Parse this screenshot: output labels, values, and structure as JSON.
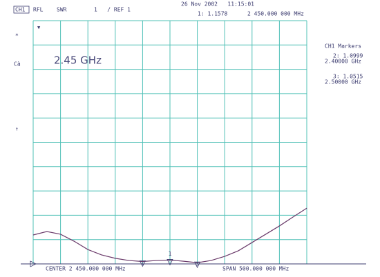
{
  "chart_data": {
    "type": "line",
    "header": {
      "channel": "CH1",
      "format": "RFL",
      "measurement": "SWR",
      "scale": "1   / REF 1",
      "timestamp": "26 Nov 2002   11:15:01",
      "active_marker": "1: 1.1578",
      "active_marker_freq": "2 450.000 000 MHz"
    },
    "annotation": "2.45 GHz",
    "center": "CENTER 2 450.000 000 MHz",
    "span": "SPAN 500.000 000 MHz",
    "side_labels": [
      "*",
      "Cà",
      "↑"
    ],
    "marker_panel": {
      "title": "CH1 Markers",
      "entries": [
        {
          "value": "2: 1.0999",
          "freq": "2.40000 GHz"
        },
        {
          "value": "3: 1.0515",
          "freq": "2.50000 GHz"
        }
      ]
    },
    "x": [
      2200,
      2225,
      2250,
      2275,
      2300,
      2325,
      2350,
      2375,
      2400,
      2425,
      2450,
      2475,
      2500,
      2525,
      2550,
      2575,
      2600,
      2625,
      2650,
      2675,
      2700
    ],
    "values": [
      2.19,
      2.33,
      2.22,
      1.93,
      1.59,
      1.37,
      1.23,
      1.14,
      1.1,
      1.14,
      1.16,
      1.11,
      1.05,
      1.14,
      1.31,
      1.54,
      1.88,
      2.22,
      2.56,
      2.93,
      3.29
    ],
    "color": "#6a3a6a",
    "markers": [
      {
        "label": "1",
        "x": 2450,
        "value": 1.1578
      },
      {
        "label": "2",
        "x": 2400,
        "value": 1.0999
      },
      {
        "label": "3",
        "x": 2500,
        "value": 1.0515
      }
    ],
    "xlim": [
      2200,
      2700
    ],
    "ylim": [
      1,
      11
    ]
  }
}
